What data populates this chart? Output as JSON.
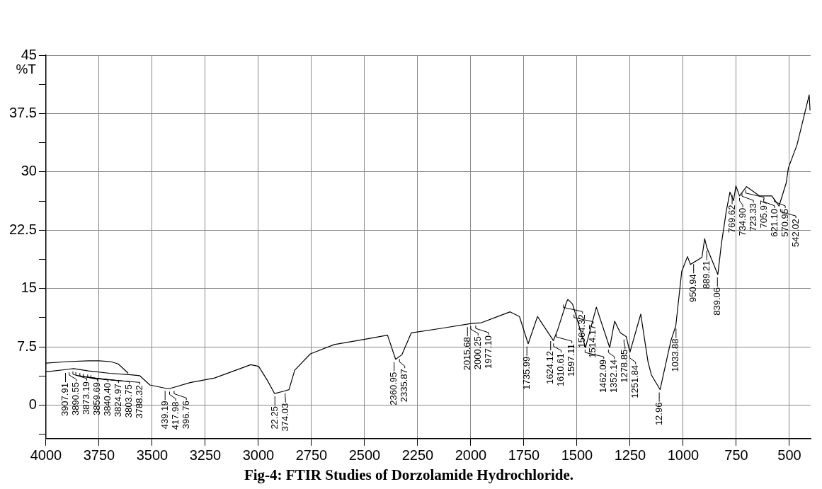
{
  "chart_data": {
    "type": "line",
    "title": "Fig-4: FTIR Studies of Dorzolamide Hydrochloride.",
    "ylabel": "%T",
    "series": [
      {
        "color": "#000000",
        "x": [
          4000,
          3900,
          3800,
          3750,
          3695,
          3660,
          3640,
          3613
        ],
        "values": [
          5.4,
          5.6,
          5.7,
          5.7,
          5.6,
          5.3,
          4.8,
          4.1
        ]
      },
      {
        "color": "#000000",
        "x": [
          4000,
          3900,
          3870,
          3800,
          3700,
          3600,
          3559,
          3511,
          3423,
          3321,
          3206,
          3036,
          2999,
          2958,
          2924,
          2880,
          2856,
          2829,
          2755,
          2643,
          2493,
          2392,
          2354,
          2324,
          2280,
          2134,
          1998,
          1950,
          1883,
          1815,
          1771,
          1730,
          1686,
          1611,
          1591,
          1550,
          1543,
          1521,
          1460,
          1409,
          1346,
          1323,
          1296,
          1268,
          1251,
          1200,
          1166,
          1150,
          1109,
          1058,
          1035,
          1007,
          980,
          966,
          912,
          899,
          888,
          837,
          820,
          797,
          780,
          763,
          752,
          735,
          702,
          640,
          583,
          549,
          515,
          505,
          464,
          407,
          403
        ],
        "values": [
          4.3,
          4.6,
          4.7,
          4.4,
          4.1,
          3.9,
          3.8,
          2.6,
          2.1,
          2.9,
          3.5,
          5.2,
          5.0,
          3.2,
          1.5,
          1.8,
          2.0,
          4.5,
          6.6,
          7.8,
          8.5,
          9.0,
          5.9,
          6.5,
          9.3,
          9.9,
          10.5,
          10.6,
          11.3,
          12.0,
          11.4,
          7.9,
          11.4,
          8.3,
          9.7,
          13.2,
          13.6,
          13.0,
          7.4,
          12.6,
          7.4,
          10.8,
          9.3,
          8.8,
          6.8,
          11.7,
          5.6,
          3.9,
          2.0,
          8.3,
          10.2,
          17.2,
          19.1,
          18.1,
          19.0,
          21.4,
          20.2,
          16.8,
          20.8,
          25.0,
          27.4,
          26.3,
          28.2,
          26.9,
          28.1,
          26.9,
          26.9,
          25.6,
          28.6,
          30.5,
          33.5,
          39.9,
          37.9
        ]
      }
    ],
    "xlim": [
      4000,
      400
    ],
    "xticks": [
      4000,
      3750,
      3500,
      3250,
      3000,
      2750,
      2500,
      2250,
      2000,
      1750,
      1500,
      1250,
      1000,
      750,
      500
    ],
    "ylim": [
      -4.3,
      45
    ],
    "yticks": [
      {
        "value": -3.75,
        "label": null
      },
      0,
      {
        "value": 3.75,
        "label": null
      },
      7.5,
      {
        "value": 11.25,
        "label": null
      },
      15,
      {
        "value": 18.75,
        "label": null
      },
      22.5,
      {
        "value": 26.25,
        "label": null
      },
      30,
      {
        "value": 33.75,
        "label": null
      },
      37.5,
      {
        "value": 41.25,
        "label": null
      },
      45
    ],
    "grid": true,
    "legend": false,
    "annotations": [
      {
        "text": "3907.91",
        "x": 3907.91,
        "y": 4.5
      },
      {
        "text": "3890.55",
        "x": 3890.55,
        "y": 4.6
      },
      {
        "text": "3873.19",
        "x": 3873.19,
        "y": 4.7
      },
      {
        "text": "3859.69",
        "x": 3859.69,
        "y": 4.6
      },
      {
        "text": "3840.40",
        "x": 3840.4,
        "y": 4.5
      },
      {
        "text": "3824.97",
        "x": 3824.97,
        "y": 4.4
      },
      {
        "text": "3803.75",
        "x": 3803.75,
        "y": 4.3
      },
      {
        "text": "3788.32",
        "x": 3788.32,
        "y": 4.2
      },
      {
        "text": "439.19",
        "x": 3439.19,
        "y": 2.2
      },
      {
        "text": "417.98",
        "x": 3417.98,
        "y": 2.1
      },
      {
        "text": "396.76",
        "x": 3396.76,
        "y": 2.2
      },
      {
        "text": "22.25",
        "x": 2922.25,
        "y": 1.5
      },
      {
        "text": "374.03",
        "x": 2874.03,
        "y": 1.9
      },
      {
        "text": "2360.95",
        "x": 2360.95,
        "y": 5.9
      },
      {
        "text": "2335.87",
        "x": 2335.87,
        "y": 6.3
      },
      {
        "text": "2015.68",
        "x": 2015.68,
        "y": 10.4
      },
      {
        "text": "2000.25",
        "x": 2000.25,
        "y": 10.5
      },
      {
        "text": "1977.10",
        "x": 1977.1,
        "y": 10.6
      },
      {
        "text": "1735.99",
        "x": 1735.99,
        "y": 7.9
      },
      {
        "text": "1624.12",
        "x": 1624.12,
        "y": 8.6
      },
      {
        "text": "1610.61",
        "x": 1610.61,
        "y": 8.3
      },
      {
        "text": "1597.11",
        "x": 1597.11,
        "y": 9.5
      },
      {
        "text": "1564.32",
        "x": 1564.32,
        "y": 13.3
      },
      {
        "text": "1514.17",
        "x": 1514.17,
        "y": 12.0
      },
      {
        "text": "1462.09",
        "x": 1462.09,
        "y": 7.5
      },
      {
        "text": "1352.14",
        "x": 1352.14,
        "y": 7.5
      },
      {
        "text": "1278.85",
        "x": 1278.85,
        "y": 8.8
      },
      {
        "text": "1251.84",
        "x": 1251.84,
        "y": 6.8
      },
      {
        "text": "12.96",
        "x": 1112.96,
        "y": 2.0
      },
      {
        "text": "1033.88",
        "x": 1033.88,
        "y": 10.2
      },
      {
        "text": "950.94",
        "x": 950.94,
        "y": 18.5
      },
      {
        "text": "889.21",
        "x": 889.21,
        "y": 20.2
      },
      {
        "text": "839.06",
        "x": 839.06,
        "y": 16.8
      },
      {
        "text": "769.62",
        "x": 769.62,
        "y": 27.4
      },
      {
        "text": "734.90",
        "x": 734.9,
        "y": 27.0
      },
      {
        "text": "723.33",
        "x": 723.33,
        "y": 27.6
      },
      {
        "text": "705.97",
        "x": 705.97,
        "y": 28.0
      },
      {
        "text": "621.10",
        "x": 621.1,
        "y": 26.9
      },
      {
        "text": "570.95",
        "x": 570.95,
        "y": 26.9
      },
      {
        "text": "542.02",
        "x": 542.02,
        "y": 25.6
      }
    ]
  }
}
